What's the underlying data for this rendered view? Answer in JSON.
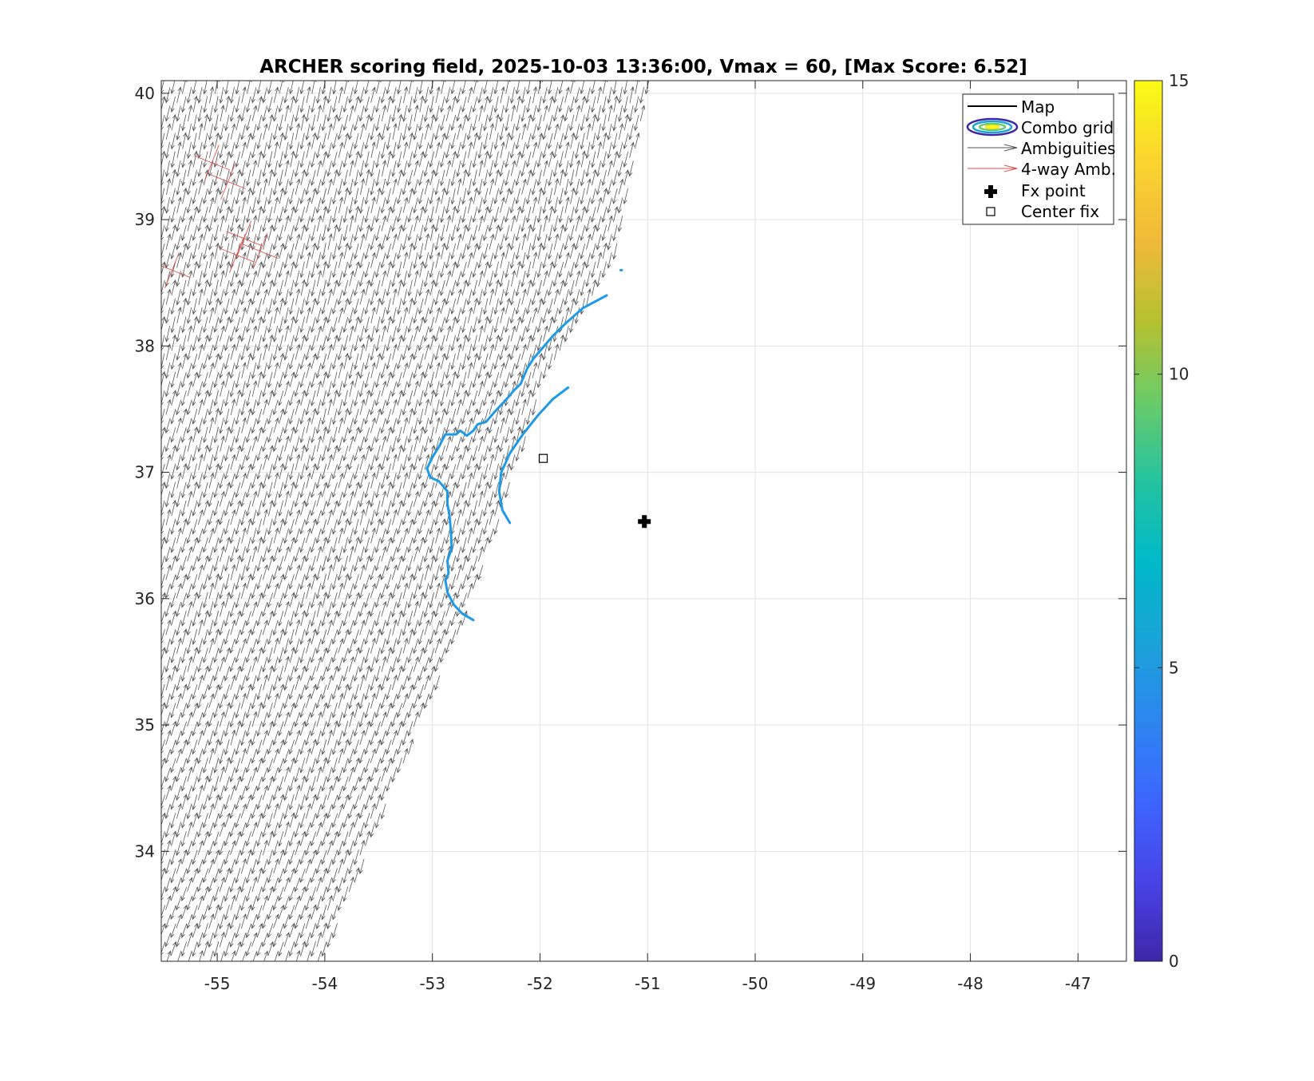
{
  "chart_data": {
    "type": "scatter",
    "title": "ARCHER scoring field, 2025-10-03 13:36:00, Vmax = 60, [Max Score: 6.52]",
    "xlabel": "",
    "ylabel": "",
    "xlim": [
      -55.52,
      -46.55
    ],
    "ylim": [
      33.13,
      40.1
    ],
    "xticks": [
      -55,
      -54,
      -53,
      -52,
      -51,
      -50,
      -49,
      -48,
      -47
    ],
    "yticks": [
      34,
      35,
      36,
      37,
      38,
      39,
      40
    ],
    "grid": true,
    "legend_position": "top-right",
    "legend": [
      "Map",
      "Combo grid",
      "Ambiguities",
      "4-way Amb.",
      "Fx point",
      "Center fix"
    ],
    "colorbar": {
      "min": 0,
      "max": 15,
      "ticks": [
        0,
        5,
        10,
        15
      ],
      "colormap": [
        "#3e26a8",
        "#4743e7",
        "#3d65fe",
        "#2c86f0",
        "#1aa3d8",
        "#00b9c8",
        "#24c39f",
        "#6acb68",
        "#b6c12f",
        "#f1b93a",
        "#fad42f",
        "#f9fb15"
      ]
    },
    "fx_point": {
      "x": -51.03,
      "y": 36.61
    },
    "center_fix": {
      "x": -51.97,
      "y": 37.11
    },
    "contour_level": 5.1,
    "contour_color": "#1f9ae6",
    "contours": [
      [
        [
          -52.62,
          35.83
        ],
        [
          -52.72,
          35.88
        ],
        [
          -52.8,
          35.95
        ],
        [
          -52.86,
          36.05
        ],
        [
          -52.88,
          36.15
        ],
        [
          -52.85,
          36.2
        ],
        [
          -52.86,
          36.3
        ],
        [
          -52.82,
          36.4
        ],
        [
          -52.83,
          36.55
        ],
        [
          -52.84,
          36.65
        ],
        [
          -52.86,
          36.75
        ],
        [
          -52.86,
          36.85
        ],
        [
          -52.94,
          36.93
        ],
        [
          -53.02,
          36.96
        ],
        [
          -53.05,
          37.03
        ],
        [
          -53.0,
          37.12
        ],
        [
          -52.94,
          37.2
        ],
        [
          -52.88,
          37.3
        ],
        [
          -52.78,
          37.3
        ],
        [
          -52.74,
          37.33
        ],
        [
          -52.68,
          37.29
        ],
        [
          -52.62,
          37.33
        ],
        [
          -52.58,
          37.38
        ],
        [
          -52.5,
          37.4
        ],
        [
          -52.42,
          37.48
        ],
        [
          -52.32,
          37.57
        ],
        [
          -52.24,
          37.65
        ],
        [
          -52.18,
          37.7
        ],
        [
          -52.12,
          37.82
        ],
        [
          -52.06,
          37.9
        ],
        [
          -51.98,
          37.98
        ],
        [
          -51.88,
          38.08
        ],
        [
          -51.76,
          38.18
        ],
        [
          -51.6,
          38.3
        ],
        [
          -51.38,
          38.4
        ]
      ],
      [
        [
          -52.28,
          36.6
        ],
        [
          -52.35,
          36.7
        ],
        [
          -52.38,
          36.85
        ],
        [
          -52.36,
          37.0
        ],
        [
          -52.28,
          37.15
        ],
        [
          -52.16,
          37.3
        ],
        [
          -52.02,
          37.45
        ],
        [
          -51.88,
          37.58
        ],
        [
          -51.74,
          37.67
        ]
      ],
      [
        [
          -51.25,
          38.6
        ],
        [
          -51.24,
          38.6
        ]
      ]
    ],
    "ambiguities": {
      "color": "#555555",
      "swath_edge": [
        [
          -55.52,
          33.13
        ],
        [
          -54.02,
          33.13
        ],
        [
          -52.62,
          36.0
        ],
        [
          -52.0,
          37.6
        ],
        [
          -51.3,
          38.7
        ],
        [
          -50.98,
          40.1
        ],
        [
          -55.52,
          40.1
        ]
      ]
    },
    "four_way_ambiguities": {
      "color": "#d9534f",
      "locations": [
        [
          -55.05,
          39.45
        ],
        [
          -54.9,
          39.3
        ],
        [
          -54.75,
          38.85
        ],
        [
          -54.6,
          38.75
        ],
        [
          -54.82,
          38.72
        ],
        [
          -55.42,
          38.6
        ]
      ]
    }
  }
}
